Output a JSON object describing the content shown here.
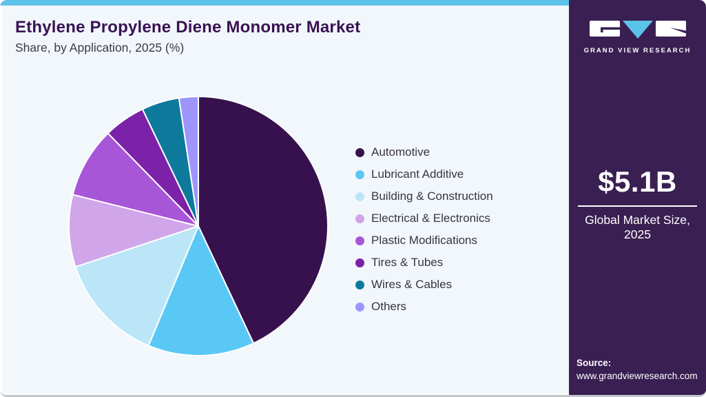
{
  "header": {
    "title": "Ethylene Propylene Diene Monomer Market",
    "subtitle": "Share, by Application, 2025 (%)"
  },
  "chart_data": {
    "type": "pie",
    "title": "Ethylene Propylene Diene Monomer Market Share, by Application, 2025 (%)",
    "categories": [
      "Automotive",
      "Lubricant Additive",
      "Building & Construction",
      "Electrical & Electronics",
      "Plastic Modifications",
      "Tires & Tubes",
      "Wires & Cables",
      "Others"
    ],
    "values": [
      43.0,
      13.3,
      13.6,
      9.0,
      8.8,
      5.2,
      4.7,
      2.4
    ],
    "unit": "%",
    "colors": [
      "#37114d",
      "#5ac8f5",
      "#bae6f8",
      "#d0a5ea",
      "#a856d8",
      "#7b22a8",
      "#0d7a9c",
      "#9d95fb"
    ],
    "start_angle_deg": 0,
    "direction": "clockwise",
    "legend_position": "right",
    "slice_stroke": "#ffffff"
  },
  "sidebar": {
    "logo_text": "GRAND VIEW RESEARCH",
    "market_size_value": "$5.1B",
    "market_size_label_line1": "Global Market Size,",
    "market_size_label_line2": "2025",
    "source_label": "Source:",
    "source_url": "www.grandviewresearch.com"
  },
  "colors": {
    "accent_bar": "#5ec3e8",
    "sidebar_bg": "#3a1f52",
    "main_bg": "#f1f7fb",
    "title": "#3a1253",
    "logo_triangle": "#5bc2e8"
  }
}
